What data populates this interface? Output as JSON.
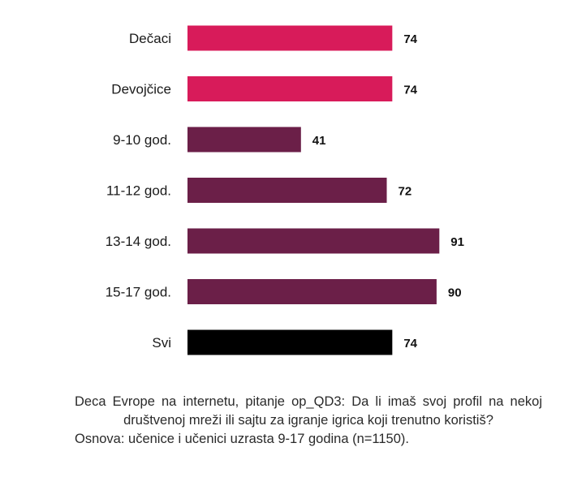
{
  "chart_data": {
    "type": "bar",
    "orientation": "horizontal",
    "categories": [
      "Dečaci",
      "Devojčice",
      "9-10 god.",
      "11-12 god.",
      "13-14 god.",
      "15-17 god.",
      "Svi"
    ],
    "values": [
      74,
      74,
      41,
      72,
      91,
      90,
      74
    ],
    "value_labels": [
      "74",
      "74",
      "41",
      "72",
      "91",
      "90",
      "74"
    ],
    "bar_colors": [
      "#d81b5a",
      "#d81b5a",
      "#6b1f48",
      "#6b1f48",
      "#6b1f48",
      "#6b1f48",
      "#000000"
    ],
    "xlim": [
      0,
      100
    ],
    "grid": false,
    "legend": "none"
  },
  "caption": {
    "question": "Deca Evrope na internetu, pitanje op_QD3: Da li imaš svoj profil na nekoj društvenoj mreži ili sajtu za igranje igrica koji trenutno koristiš?",
    "basis": "Osnova: učenice i učenici uzrasta 9-17 godina (n=1150)."
  }
}
